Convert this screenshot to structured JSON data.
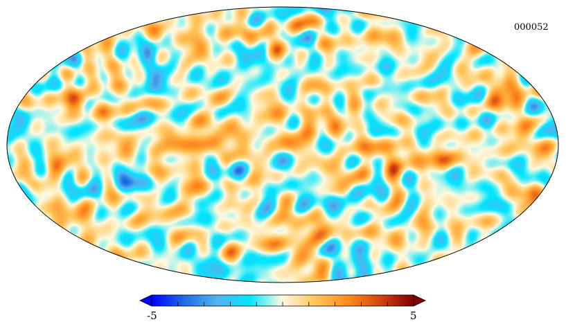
{
  "chart_data": {
    "type": "heatmap",
    "projection": "mollweide",
    "label": "000052",
    "colormap": {
      "name": "planck",
      "stops": [
        "#0000ff",
        "#1e6ee6",
        "#50b4f0",
        "#00e6ff",
        "#fffae0",
        "#ffc45a",
        "#ff8c1e",
        "#d2410f",
        "#820000"
      ]
    },
    "colorbar": {
      "min": -5,
      "max": 5,
      "min_label": "-5",
      "max_label": "5",
      "tick_count": 10,
      "extend": "both"
    },
    "grid": false,
    "field_description_seed": 52
  }
}
